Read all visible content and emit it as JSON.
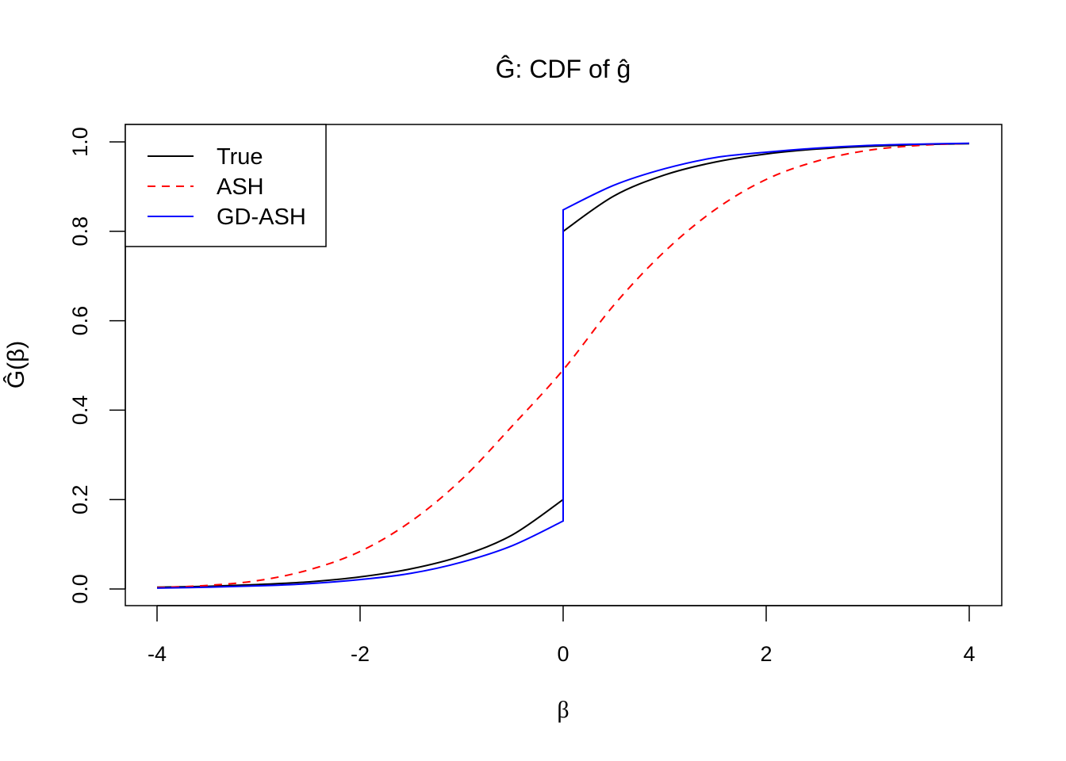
{
  "chart_data": {
    "type": "line",
    "title": "Ĝ: CDF of ĝ",
    "xlabel": "β",
    "ylabel": "Ĝ(β)",
    "xlim": [
      -4.3,
      4.3
    ],
    "ylim": [
      -0.04,
      1.04
    ],
    "xticks": [
      -4,
      -2,
      0,
      2,
      4
    ],
    "xtick_labels": [
      "-4",
      "-2",
      "0",
      "2",
      "4"
    ],
    "yticks": [
      0,
      0.2,
      0.4,
      0.6,
      0.8,
      1.0
    ],
    "ytick_labels": [
      "0.0",
      "0.2",
      "0.4",
      "0.6",
      "0.8",
      "1.0"
    ],
    "grid": false,
    "legend_position": "top-left",
    "series": [
      {
        "name": "True",
        "color": "#000000",
        "dash": "solid",
        "x": [
          -4,
          -3.5,
          -3,
          -2.5,
          -2,
          -1.5,
          -1,
          -0.5,
          0,
          0,
          0.5,
          1,
          1.5,
          2,
          2.5,
          3,
          3.5,
          4
        ],
        "y": [
          0.004,
          0.006,
          0.01,
          0.016,
          0.027,
          0.045,
          0.074,
          0.121,
          0.2,
          0.8,
          0.879,
          0.926,
          0.955,
          0.973,
          0.984,
          0.99,
          0.994,
          0.996
        ]
      },
      {
        "name": "ASH",
        "color": "#ff0000",
        "dash": "dashed",
        "x": [
          -4,
          -3.5,
          -3,
          -2.5,
          -2,
          -1.5,
          -1,
          -0.5,
          0,
          0.5,
          1,
          1.5,
          2,
          2.5,
          3,
          3.5,
          4
        ],
        "y": [
          0.003,
          0.008,
          0.019,
          0.043,
          0.084,
          0.151,
          0.245,
          0.365,
          0.49,
          0.635,
          0.755,
          0.849,
          0.916,
          0.957,
          0.981,
          0.992,
          0.997
        ]
      },
      {
        "name": "GD-ASH",
        "color": "#0000ff",
        "dash": "solid",
        "x": [
          -4,
          -3.5,
          -3,
          -2.5,
          -2,
          -1.5,
          -1,
          -0.5,
          0,
          0,
          0.5,
          1,
          1.5,
          2,
          2.5,
          3,
          3.5,
          4
        ],
        "y": [
          0.002,
          0.004,
          0.007,
          0.012,
          0.021,
          0.035,
          0.06,
          0.097,
          0.152,
          0.848,
          0.903,
          0.94,
          0.965,
          0.977,
          0.986,
          0.992,
          0.995,
          0.997
        ]
      }
    ]
  }
}
